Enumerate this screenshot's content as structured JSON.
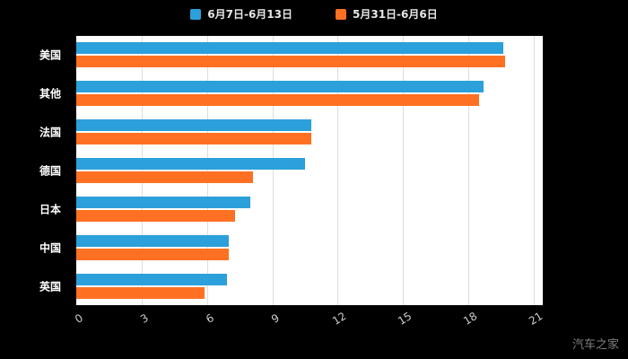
{
  "legend": [
    {
      "label": "6月7日-6月13日",
      "color": "#2CA0DA"
    },
    {
      "label": "5月31日-6月6日",
      "color": "#FF7022"
    }
  ],
  "watermark": "汽车之家",
  "chart_data": {
    "type": "bar",
    "orientation": "horizontal",
    "title": "",
    "categories": [
      "美国",
      "其他",
      "法国",
      "德国",
      "日本",
      "中国",
      "英国"
    ],
    "series": [
      {
        "name": "6月7日-6月13日",
        "color": "#2CA0DA",
        "values": [
          19.6,
          18.7,
          10.8,
          10.5,
          8.0,
          7.0,
          6.9
        ]
      },
      {
        "name": "5月31日-6月6日",
        "color": "#FF7022",
        "values": [
          19.7,
          18.5,
          10.8,
          8.1,
          7.3,
          7.0,
          5.9
        ]
      }
    ],
    "xlim": [
      0,
      21
    ],
    "xticks": [
      0,
      3,
      6,
      9,
      12,
      15,
      18,
      21
    ],
    "grid": true,
    "legend_position": "top",
    "plot_background": "#ffffff",
    "page_background": "#000000"
  }
}
